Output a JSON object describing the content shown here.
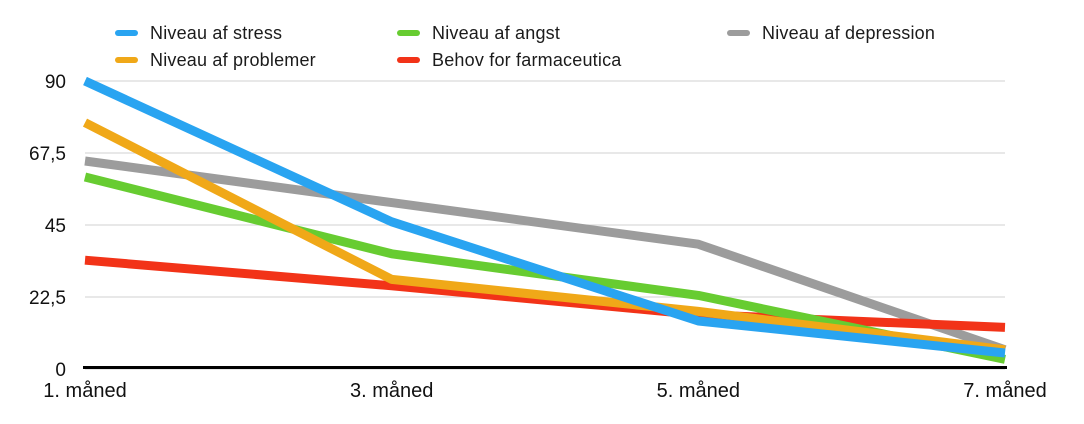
{
  "chart_data": {
    "type": "line",
    "title": "",
    "xlabel": "",
    "ylabel": "",
    "categories": [
      "1. måned",
      "3. måned",
      "5. måned",
      "7. måned"
    ],
    "series": [
      {
        "name": "Niveau af stress",
        "color": "#29A4F1",
        "values": [
          90,
          46,
          15,
          5
        ]
      },
      {
        "name": "Niveau af problemer",
        "color": "#F0A818",
        "values": [
          77,
          28,
          18,
          6
        ]
      },
      {
        "name": "Niveau af angst",
        "color": "#67CC31",
        "values": [
          60,
          36,
          23,
          3
        ]
      },
      {
        "name": "Behov for farmaceutica",
        "color": "#F23318",
        "values": [
          34,
          26,
          17,
          13
        ]
      },
      {
        "name": "Niveau af depression",
        "color": "#9C9C9C",
        "values": [
          65,
          52,
          39,
          6
        ]
      }
    ],
    "draw_order_bottom_to_top": [
      4,
      3,
      2,
      1,
      0
    ],
    "y_ticks": [
      {
        "label": "0",
        "value": 0
      },
      {
        "label": "22,5",
        "value": 22.5
      },
      {
        "label": "45",
        "value": 45
      },
      {
        "label": "67,5",
        "value": 67.5
      },
      {
        "label": "90",
        "value": 90
      }
    ],
    "ylim": [
      0,
      90
    ],
    "grid": true,
    "legend_position": "top",
    "colors": {
      "gridline": "#D9D9D9",
      "axis": "#000000",
      "text": "#111111",
      "background": "#FFFFFF"
    }
  }
}
